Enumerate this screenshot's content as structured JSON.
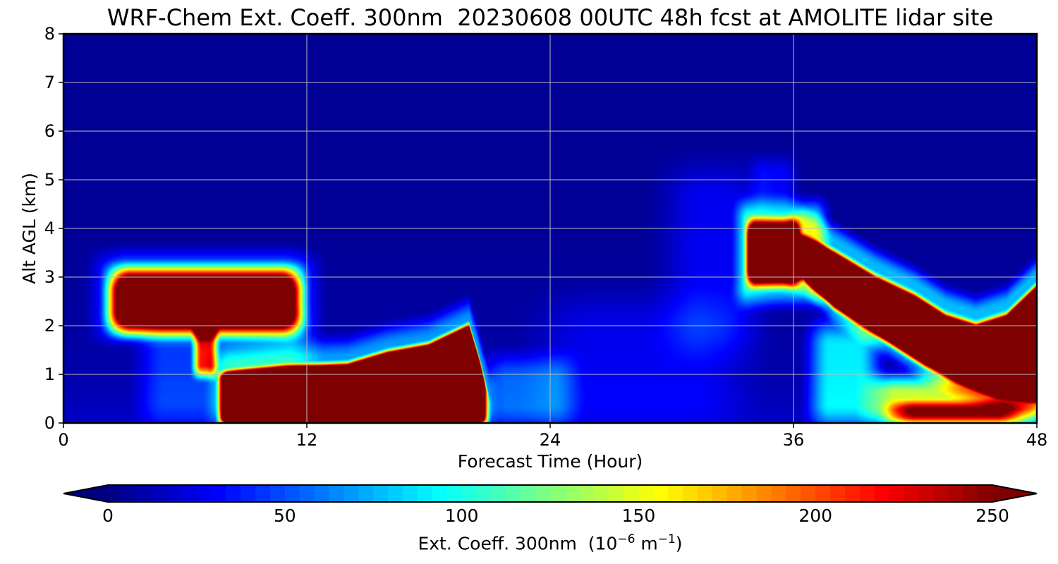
{
  "chart_data": {
    "type": "heatmap",
    "title": "WRF-Chem Ext. Coeff. 300nm  20230608 00UTC 48h fcst at AMOLITE lidar site",
    "xlabel": "Forecast Time (Hour)",
    "ylabel": "Alt AGL (km)",
    "xlim": [
      0,
      48
    ],
    "ylim": [
      0,
      8
    ],
    "x_ticks": [
      0,
      12,
      24,
      36,
      48
    ],
    "y_ticks": [
      0,
      1,
      2,
      3,
      4,
      5,
      6,
      7,
      8
    ],
    "grid": true,
    "colormap": "jet",
    "colorbar": {
      "label_main": "Ext. Coeff. 300nm  (10",
      "label_exp1": "−6",
      "label_mid": " m",
      "label_exp2": "−1",
      "label_end": ")",
      "range": [
        0,
        250
      ],
      "ticks": [
        0,
        50,
        100,
        150,
        200,
        250
      ],
      "extend": "both",
      "orientation": "horizontal",
      "under_color": "#00007f",
      "over_color": "#7f0000"
    },
    "features": [
      {
        "desc": "elevated plume",
        "hours": [
          2,
          12
        ],
        "alt_km": [
          1.9,
          3.4
        ],
        "value": 250
      },
      {
        "desc": "boundary layer plume",
        "hours": [
          7.5,
          20.5
        ],
        "alt_km": [
          0,
          2.0
        ],
        "value": 250
      },
      {
        "desc": "mid-level layer",
        "hours": [
          33.5,
          36.5
        ],
        "alt_km": [
          2.5,
          4.2
        ],
        "value": 250
      },
      {
        "desc": "descending layer",
        "hours": [
          36,
          48
        ],
        "alt_km": [
          0,
          3.2
        ],
        "value": 250
      },
      {
        "desc": "background",
        "hours": [
          0,
          48
        ],
        "alt_km": [
          4,
          8
        ],
        "value": 5
      }
    ]
  }
}
